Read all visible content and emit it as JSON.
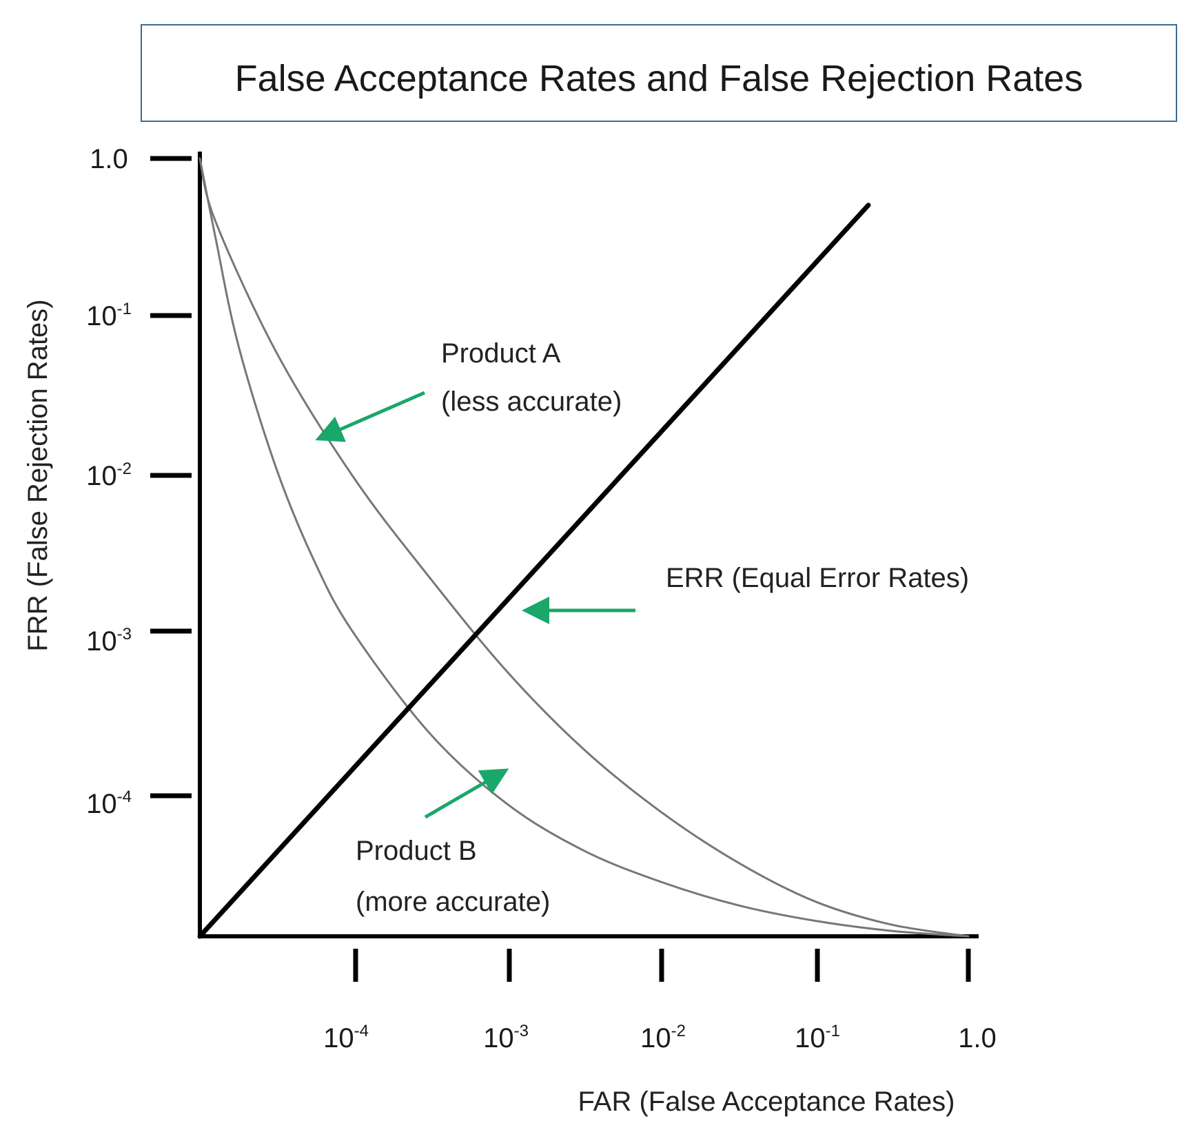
{
  "chart_data": {
    "type": "line",
    "title": "False Acceptance Rates and False Rejection Rates",
    "xlabel": "FAR (False Acceptance Rates)",
    "ylabel": "FRR (False Rejection Rates)",
    "x_ticks": [
      {
        "base": "10",
        "exp": "-4"
      },
      {
        "base": "10",
        "exp": "-3"
      },
      {
        "base": "10",
        "exp": "-2"
      },
      {
        "base": "10",
        "exp": "-1"
      },
      {
        "base": "1.0",
        "exp": ""
      }
    ],
    "y_ticks": [
      {
        "base": "1.0",
        "exp": ""
      },
      {
        "base": "10",
        "exp": "-1"
      },
      {
        "base": "10",
        "exp": "-2"
      },
      {
        "base": "10",
        "exp": "-3"
      },
      {
        "base": "10",
        "exp": "-4"
      }
    ],
    "series": [
      {
        "key": "product_a",
        "color": "#777777",
        "points": [
          [
            0.0,
            1.0
          ],
          [
            0.02,
            0.92
          ],
          [
            0.1,
            0.75
          ],
          [
            0.2,
            0.59
          ],
          [
            0.3,
            0.46
          ],
          [
            0.4,
            0.34
          ],
          [
            0.5,
            0.24
          ],
          [
            0.6,
            0.16
          ],
          [
            0.7,
            0.095
          ],
          [
            0.8,
            0.045
          ],
          [
            0.9,
            0.015
          ],
          [
            1.0,
            0.0
          ]
        ]
      },
      {
        "key": "product_b",
        "color": "#777777",
        "points": [
          [
            0.0,
            1.0
          ],
          [
            0.02,
            0.9
          ],
          [
            0.05,
            0.76
          ],
          [
            0.1,
            0.6
          ],
          [
            0.15,
            0.48
          ],
          [
            0.2,
            0.39
          ],
          [
            0.3,
            0.26
          ],
          [
            0.4,
            0.17
          ],
          [
            0.5,
            0.11
          ],
          [
            0.6,
            0.07
          ],
          [
            0.7,
            0.04
          ],
          [
            0.8,
            0.02
          ],
          [
            0.9,
            0.007
          ],
          [
            1.0,
            0.0
          ]
        ]
      },
      {
        "key": "err_line",
        "color": "#000000",
        "points": [
          [
            0.0,
            0.0
          ],
          [
            0.87,
            0.94
          ]
        ]
      }
    ],
    "annotations": [
      {
        "key": "product_a",
        "lines": [
          "Product A",
          "(less accurate)"
        ],
        "arrow_color": "#1aa76a"
      },
      {
        "key": "err",
        "lines": [
          "ERR (Equal Error Rates)"
        ],
        "arrow_color": "#1aa76a"
      },
      {
        "key": "product_b",
        "lines": [
          "Product B",
          "(more accurate)"
        ],
        "arrow_color": "#1aa76a"
      }
    ],
    "grid": false,
    "legend": "none"
  }
}
